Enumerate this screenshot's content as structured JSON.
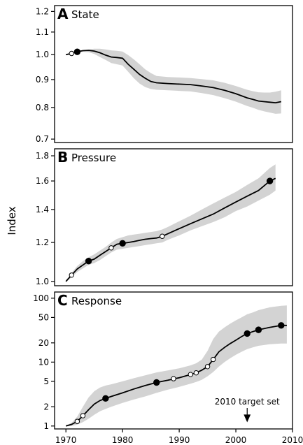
{
  "figure": {
    "ylabel": "Index",
    "x_tick_labels": [
      "1970",
      "1980",
      "1990",
      "2000",
      "2010"
    ],
    "annotation": "2010 target set",
    "annotation_year": 2002
  },
  "chart_data": [
    {
      "type": "line",
      "panel_letter": "A",
      "title": "State",
      "xlim": [
        1968,
        2010
      ],
      "ylim": [
        0.69,
        1.23
      ],
      "y_scale": "log",
      "y_ticks": [
        0.7,
        0.8,
        0.9,
        1.0,
        1.1,
        1.2
      ],
      "y_tick_labels": [
        "0.7",
        "0.8",
        "0.9",
        "1.0",
        "1.1",
        "1.2"
      ],
      "grid": false,
      "band_color": "#d3d3d3",
      "line": [
        [
          1970,
          1.0
        ],
        [
          1971,
          1.005
        ],
        [
          1972,
          1.012
        ],
        [
          1973,
          1.017
        ],
        [
          1974,
          1.018
        ],
        [
          1975,
          1.015
        ],
        [
          1976,
          1.008
        ],
        [
          1977,
          0.998
        ],
        [
          1978,
          0.99
        ],
        [
          1979,
          0.988
        ],
        [
          1980,
          0.985
        ],
        [
          1981,
          0.96
        ],
        [
          1982,
          0.94
        ],
        [
          1983,
          0.92
        ],
        [
          1984,
          0.905
        ],
        [
          1985,
          0.893
        ],
        [
          1986,
          0.888
        ],
        [
          1988,
          0.885
        ],
        [
          1990,
          0.883
        ],
        [
          1992,
          0.881
        ],
        [
          1994,
          0.876
        ],
        [
          1996,
          0.87
        ],
        [
          1998,
          0.86
        ],
        [
          2000,
          0.848
        ],
        [
          2002,
          0.833
        ],
        [
          2003,
          0.828
        ],
        [
          2004,
          0.822
        ],
        [
          2005,
          0.82
        ],
        [
          2006,
          0.818
        ],
        [
          2007,
          0.816
        ],
        [
          2008,
          0.82
        ]
      ],
      "band_upper": [
        [
          1970,
          1.002
        ],
        [
          1971,
          1.008
        ],
        [
          1972,
          1.016
        ],
        [
          1973,
          1.02
        ],
        [
          1974,
          1.022
        ],
        [
          1975,
          1.025
        ],
        [
          1976,
          1.025
        ],
        [
          1977,
          1.022
        ],
        [
          1978,
          1.018
        ],
        [
          1979,
          1.016
        ],
        [
          1980,
          1.013
        ],
        [
          1981,
          0.998
        ],
        [
          1982,
          0.98
        ],
        [
          1983,
          0.96
        ],
        [
          1984,
          0.94
        ],
        [
          1985,
          0.925
        ],
        [
          1986,
          0.914
        ],
        [
          1988,
          0.91
        ],
        [
          1990,
          0.908
        ],
        [
          1992,
          0.906
        ],
        [
          1994,
          0.902
        ],
        [
          1996,
          0.897
        ],
        [
          1998,
          0.888
        ],
        [
          2000,
          0.876
        ],
        [
          2002,
          0.862
        ],
        [
          2003,
          0.857
        ],
        [
          2004,
          0.853
        ],
        [
          2005,
          0.852
        ],
        [
          2006,
          0.852
        ],
        [
          2007,
          0.855
        ],
        [
          2008,
          0.86
        ]
      ],
      "band_lower": [
        [
          1970,
          0.998
        ],
        [
          1971,
          1.002
        ],
        [
          1972,
          1.008
        ],
        [
          1973,
          1.012
        ],
        [
          1974,
          1.01
        ],
        [
          1975,
          1.003
        ],
        [
          1976,
          0.99
        ],
        [
          1977,
          0.978
        ],
        [
          1978,
          0.965
        ],
        [
          1979,
          0.96
        ],
        [
          1980,
          0.955
        ],
        [
          1981,
          0.93
        ],
        [
          1982,
          0.905
        ],
        [
          1983,
          0.885
        ],
        [
          1984,
          0.872
        ],
        [
          1985,
          0.865
        ],
        [
          1986,
          0.862
        ],
        [
          1988,
          0.86
        ],
        [
          1990,
          0.858
        ],
        [
          1992,
          0.856
        ],
        [
          1994,
          0.85
        ],
        [
          1996,
          0.843
        ],
        [
          1998,
          0.832
        ],
        [
          2000,
          0.82
        ],
        [
          2002,
          0.805
        ],
        [
          2003,
          0.799
        ],
        [
          2004,
          0.792
        ],
        [
          2005,
          0.787
        ],
        [
          2006,
          0.783
        ],
        [
          2007,
          0.779
        ],
        [
          2008,
          0.78
        ]
      ],
      "points_open": [
        [
          1971,
          1.005
        ]
      ],
      "points_filled": [
        [
          1972,
          1.012
        ]
      ]
    },
    {
      "type": "line",
      "panel_letter": "B",
      "title": "Pressure",
      "xlim": [
        1968,
        2010
      ],
      "ylim": [
        0.98,
        1.86
      ],
      "y_scale": "log",
      "y_ticks": [
        1.0,
        1.2,
        1.4,
        1.6,
        1.8
      ],
      "y_tick_labels": [
        "1.0",
        "1.2",
        "1.4",
        "1.6",
        "1.8"
      ],
      "grid": false,
      "band_color": "#d3d3d3",
      "line": [
        [
          1970,
          1.0
        ],
        [
          1971,
          1.03
        ],
        [
          1972,
          1.06
        ],
        [
          1973,
          1.08
        ],
        [
          1974,
          1.1
        ],
        [
          1975,
          1.11
        ],
        [
          1976,
          1.13
        ],
        [
          1977,
          1.15
        ],
        [
          1978,
          1.17
        ],
        [
          1979,
          1.19
        ],
        [
          1980,
          1.195
        ],
        [
          1981,
          1.2
        ],
        [
          1982,
          1.205
        ],
        [
          1983,
          1.212
        ],
        [
          1984,
          1.218
        ],
        [
          1985,
          1.222
        ],
        [
          1986,
          1.225
        ],
        [
          1987,
          1.235
        ],
        [
          1988,
          1.25
        ],
        [
          1990,
          1.28
        ],
        [
          1992,
          1.31
        ],
        [
          1994,
          1.34
        ],
        [
          1996,
          1.37
        ],
        [
          1998,
          1.41
        ],
        [
          2000,
          1.45
        ],
        [
          2002,
          1.49
        ],
        [
          2004,
          1.53
        ],
        [
          2006,
          1.6
        ],
        [
          2007,
          1.62
        ]
      ],
      "band_upper": [
        [
          1970,
          1.005
        ],
        [
          1971,
          1.04
        ],
        [
          1972,
          1.075
        ],
        [
          1973,
          1.1
        ],
        [
          1974,
          1.12
        ],
        [
          1975,
          1.135
        ],
        [
          1976,
          1.155
        ],
        [
          1977,
          1.175
        ],
        [
          1978,
          1.2
        ],
        [
          1979,
          1.22
        ],
        [
          1980,
          1.23
        ],
        [
          1981,
          1.24
        ],
        [
          1982,
          1.245
        ],
        [
          1983,
          1.25
        ],
        [
          1984,
          1.255
        ],
        [
          1985,
          1.26
        ],
        [
          1986,
          1.265
        ],
        [
          1987,
          1.275
        ],
        [
          1988,
          1.29
        ],
        [
          1990,
          1.325
        ],
        [
          1992,
          1.36
        ],
        [
          1994,
          1.4
        ],
        [
          1996,
          1.44
        ],
        [
          1998,
          1.48
        ],
        [
          2000,
          1.52
        ],
        [
          2002,
          1.57
        ],
        [
          2004,
          1.62
        ],
        [
          2006,
          1.7
        ],
        [
          2007,
          1.73
        ]
      ],
      "band_lower": [
        [
          1970,
          0.995
        ],
        [
          1971,
          1.02
        ],
        [
          1972,
          1.045
        ],
        [
          1973,
          1.063
        ],
        [
          1974,
          1.08
        ],
        [
          1975,
          1.09
        ],
        [
          1976,
          1.105
        ],
        [
          1977,
          1.125
        ],
        [
          1978,
          1.145
        ],
        [
          1979,
          1.16
        ],
        [
          1980,
          1.165
        ],
        [
          1981,
          1.17
        ],
        [
          1982,
          1.175
        ],
        [
          1983,
          1.18
        ],
        [
          1984,
          1.185
        ],
        [
          1985,
          1.19
        ],
        [
          1986,
          1.195
        ],
        [
          1987,
          1.2
        ],
        [
          1988,
          1.215
        ],
        [
          1990,
          1.24
        ],
        [
          1992,
          1.27
        ],
        [
          1994,
          1.295
        ],
        [
          1996,
          1.32
        ],
        [
          1998,
          1.35
        ],
        [
          2000,
          1.39
        ],
        [
          2002,
          1.42
        ],
        [
          2004,
          1.46
        ],
        [
          2006,
          1.5
        ],
        [
          2007,
          1.53
        ]
      ],
      "points_open": [
        [
          1971,
          1.03
        ],
        [
          1978,
          1.17
        ],
        [
          1987,
          1.235
        ]
      ],
      "points_filled": [
        [
          1974,
          1.1
        ],
        [
          1980,
          1.195
        ],
        [
          2006,
          1.6
        ]
      ]
    },
    {
      "type": "line",
      "panel_letter": "C",
      "title": "Response",
      "xlim": [
        1968,
        2010
      ],
      "ylim": [
        0.9,
        125
      ],
      "y_scale": "log",
      "y_ticks": [
        1,
        2,
        5,
        10,
        20,
        50,
        100
      ],
      "y_tick_labels": [
        "1",
        "2",
        "5",
        "10",
        "20",
        "50",
        "100"
      ],
      "grid": false,
      "band_color": "#d3d3d3",
      "line": [
        [
          1970,
          1.0
        ],
        [
          1971,
          1.06
        ],
        [
          1972,
          1.18
        ],
        [
          1973,
          1.45
        ],
        [
          1974,
          1.8
        ],
        [
          1975,
          2.2
        ],
        [
          1976,
          2.5
        ],
        [
          1977,
          2.7
        ],
        [
          1978,
          2.9
        ],
        [
          1980,
          3.3
        ],
        [
          1982,
          3.8
        ],
        [
          1984,
          4.3
        ],
        [
          1986,
          4.8
        ],
        [
          1988,
          5.2
        ],
        [
          1990,
          5.7
        ],
        [
          1992,
          6.4
        ],
        [
          1993,
          6.8
        ],
        [
          1994,
          7.5
        ],
        [
          1995,
          8.5
        ],
        [
          1996,
          11
        ],
        [
          1997,
          14.5
        ],
        [
          1998,
          17
        ],
        [
          1999,
          19.5
        ],
        [
          2000,
          22
        ],
        [
          2001,
          25
        ],
        [
          2002,
          28
        ],
        [
          2003,
          30
        ],
        [
          2004,
          32
        ],
        [
          2006,
          35
        ],
        [
          2008,
          37.5
        ],
        [
          2009,
          37.5
        ]
      ],
      "band_upper": [
        [
          1970,
          1.02
        ],
        [
          1971,
          1.12
        ],
        [
          1972,
          1.4
        ],
        [
          1973,
          2.0
        ],
        [
          1974,
          2.8
        ],
        [
          1975,
          3.5
        ],
        [
          1976,
          4.0
        ],
        [
          1977,
          4.3
        ],
        [
          1978,
          4.5
        ],
        [
          1980,
          5.0
        ],
        [
          1982,
          5.6
        ],
        [
          1984,
          6.2
        ],
        [
          1986,
          6.9
        ],
        [
          1988,
          7.4
        ],
        [
          1990,
          8.0
        ],
        [
          1992,
          8.9
        ],
        [
          1993,
          9.6
        ],
        [
          1994,
          11
        ],
        [
          1995,
          15
        ],
        [
          1996,
          23
        ],
        [
          1997,
          30
        ],
        [
          1998,
          35
        ],
        [
          1999,
          40
        ],
        [
          2000,
          45
        ],
        [
          2001,
          50
        ],
        [
          2002,
          56
        ],
        [
          2003,
          60
        ],
        [
          2004,
          65
        ],
        [
          2006,
          72
        ],
        [
          2008,
          76
        ],
        [
          2009,
          77
        ]
      ],
      "band_lower": [
        [
          1970,
          0.98
        ],
        [
          1971,
          1.0
        ],
        [
          1972,
          1.05
        ],
        [
          1973,
          1.15
        ],
        [
          1974,
          1.3
        ],
        [
          1975,
          1.5
        ],
        [
          1976,
          1.7
        ],
        [
          1977,
          1.85
        ],
        [
          1978,
          2.0
        ],
        [
          1980,
          2.3
        ],
        [
          1982,
          2.6
        ],
        [
          1984,
          2.9
        ],
        [
          1986,
          3.3
        ],
        [
          1988,
          3.7
        ],
        [
          1990,
          4.1
        ],
        [
          1992,
          4.6
        ],
        [
          1993,
          4.9
        ],
        [
          1994,
          5.3
        ],
        [
          1995,
          6.0
        ],
        [
          1996,
          7.0
        ],
        [
          1997,
          8.5
        ],
        [
          1998,
          10
        ],
        [
          1999,
          11.5
        ],
        [
          2000,
          13
        ],
        [
          2001,
          14.5
        ],
        [
          2002,
          16
        ],
        [
          2003,
          17
        ],
        [
          2004,
          18
        ],
        [
          2006,
          19
        ],
        [
          2008,
          19.5
        ],
        [
          2009,
          19.5
        ]
      ],
      "points_open": [
        [
          1972,
          1.18
        ],
        [
          1973,
          1.45
        ],
        [
          1989,
          5.5
        ],
        [
          1992,
          6.4
        ],
        [
          1993,
          6.8
        ],
        [
          1995,
          8.5
        ],
        [
          1996,
          11
        ]
      ],
      "points_filled": [
        [
          1977,
          2.7
        ],
        [
          1986,
          4.8
        ],
        [
          2002,
          28
        ],
        [
          2004,
          32
        ],
        [
          2008,
          37.5
        ]
      ]
    }
  ]
}
